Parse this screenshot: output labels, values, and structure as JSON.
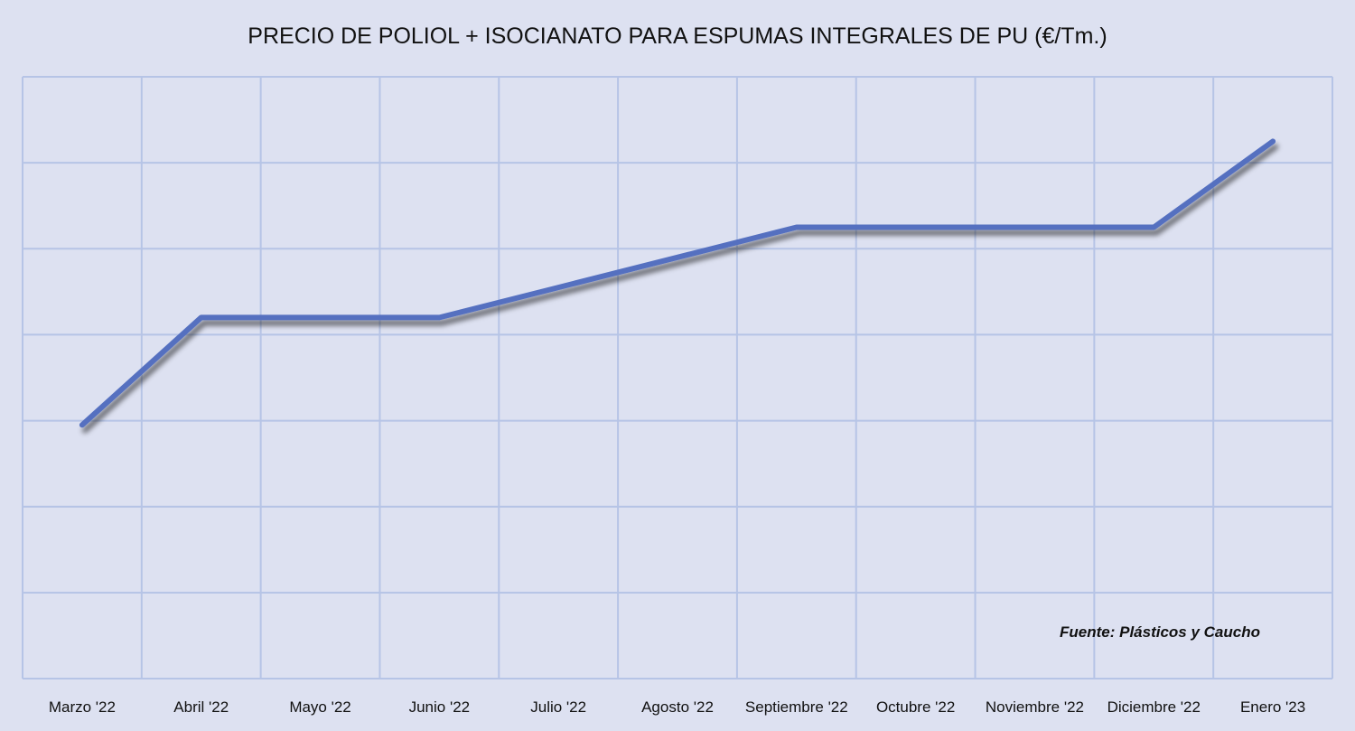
{
  "chart_data": {
    "type": "line",
    "title": "PRECIO DE POLIOL + ISOCIANATO PARA ESPUMAS INTEGRALES DE PU (€/Tm.)",
    "xlabel": "",
    "ylabel": "",
    "categories": [
      "Marzo '22",
      "Abril '22",
      "Mayo '22",
      "Junio '22",
      "Julio '22",
      "Agosto '22",
      "Septiembre '22",
      "Octubre '22",
      "Noviembre '22",
      "Diciembre '22",
      "Enero '23"
    ],
    "series": [
      {
        "values": [
          2.95,
          4.2,
          4.2,
          4.2,
          4.55,
          4.9,
          5.25,
          5.25,
          5.25,
          5.25,
          6.25
        ],
        "color": "#5470c0"
      }
    ],
    "ylim": [
      0,
      7
    ],
    "grid": true,
    "y_tick_labels_shown": false,
    "legend": "none",
    "source_note": "Fuente: Plásticos y Caucho",
    "colors": {
      "background": "#dde1f1",
      "grid": "#b6c4e6",
      "line": "#5470c0",
      "shadow": "#7a7a7a"
    }
  }
}
